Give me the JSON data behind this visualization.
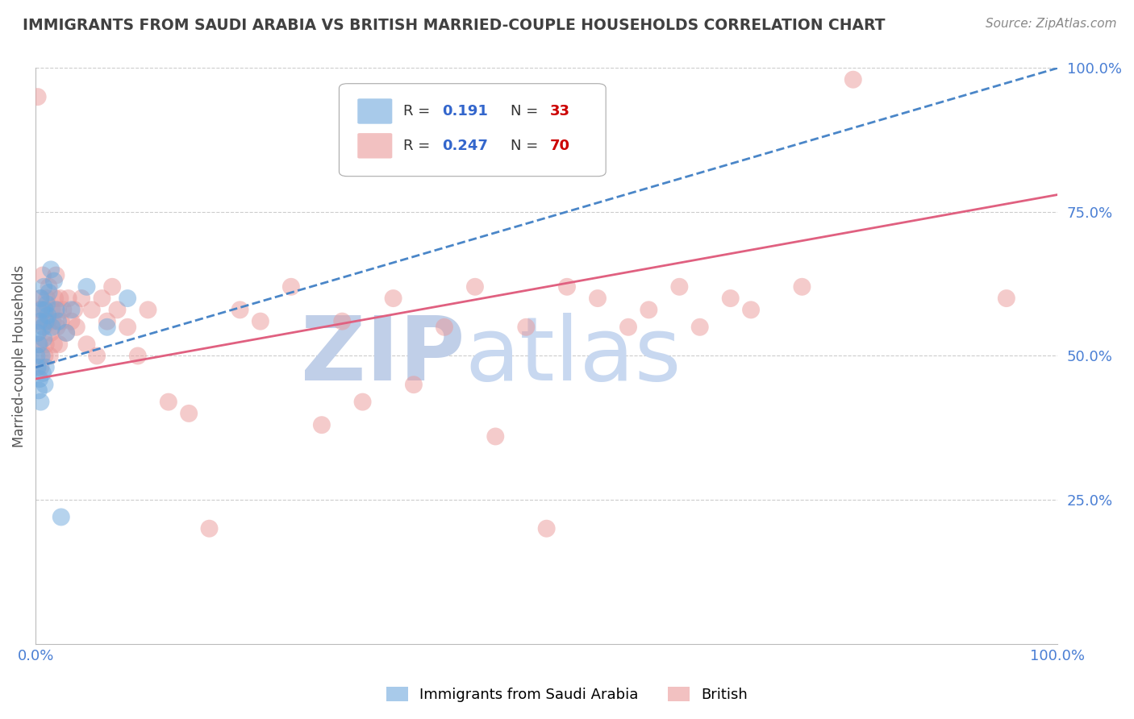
{
  "title": "IMMIGRANTS FROM SAUDI ARABIA VS BRITISH MARRIED-COUPLE HOUSEHOLDS CORRELATION CHART",
  "source": "Source: ZipAtlas.com",
  "ylabel": "Married-couple Households",
  "xlim": [
    0.0,
    1.0
  ],
  "ylim": [
    0.0,
    1.0
  ],
  "ytick_positions": [
    0.25,
    0.5,
    0.75,
    1.0
  ],
  "yticklabels": [
    "25.0%",
    "50.0%",
    "75.0%",
    "100.0%"
  ],
  "saudi_R": 0.191,
  "saudi_N": 33,
  "british_R": 0.247,
  "british_N": 70,
  "saudi_color": "#6fa8dc",
  "british_color": "#ea9999",
  "trend_saudi_color": "#4a86c8",
  "trend_british_color": "#e06080",
  "watermark_zip": "ZIP",
  "watermark_atlas": "atlas",
  "watermark_color_zip": "#c0cfe8",
  "watermark_color_atlas": "#c8d8f0",
  "background_color": "#ffffff",
  "grid_color": "#cccccc",
  "title_color": "#404040",
  "axis_label_color": "#555555",
  "tick_label_color": "#4a7fd4",
  "legend_R_color": "#3366cc",
  "legend_N_color": "#cc0000",
  "saudi_points_x": [
    0.001,
    0.002,
    0.002,
    0.003,
    0.003,
    0.004,
    0.004,
    0.005,
    0.005,
    0.006,
    0.006,
    0.007,
    0.007,
    0.008,
    0.008,
    0.009,
    0.009,
    0.01,
    0.01,
    0.011,
    0.012,
    0.013,
    0.015,
    0.016,
    0.018,
    0.02,
    0.022,
    0.025,
    0.03,
    0.035,
    0.05,
    0.07,
    0.09
  ],
  "saudi_points_y": [
    0.5,
    0.48,
    0.54,
    0.52,
    0.44,
    0.56,
    0.46,
    0.6,
    0.42,
    0.58,
    0.5,
    0.55,
    0.47,
    0.62,
    0.53,
    0.58,
    0.45,
    0.56,
    0.48,
    0.59,
    0.57,
    0.61,
    0.65,
    0.55,
    0.63,
    0.58,
    0.56,
    0.22,
    0.54,
    0.58,
    0.62,
    0.55,
    0.6
  ],
  "british_points_x": [
    0.002,
    0.003,
    0.004,
    0.005,
    0.005,
    0.006,
    0.007,
    0.008,
    0.009,
    0.01,
    0.01,
    0.011,
    0.012,
    0.013,
    0.014,
    0.015,
    0.016,
    0.017,
    0.018,
    0.019,
    0.02,
    0.021,
    0.022,
    0.023,
    0.024,
    0.025,
    0.027,
    0.03,
    0.032,
    0.035,
    0.038,
    0.04,
    0.045,
    0.05,
    0.055,
    0.06,
    0.065,
    0.07,
    0.075,
    0.08,
    0.09,
    0.1,
    0.11,
    0.13,
    0.15,
    0.17,
    0.2,
    0.22,
    0.25,
    0.28,
    0.3,
    0.32,
    0.35,
    0.37,
    0.4,
    0.43,
    0.45,
    0.48,
    0.5,
    0.52,
    0.55,
    0.58,
    0.6,
    0.63,
    0.65,
    0.68,
    0.7,
    0.75,
    0.8,
    0.95
  ],
  "british_points_y": [
    0.95,
    0.58,
    0.52,
    0.6,
    0.48,
    0.56,
    0.64,
    0.55,
    0.5,
    0.58,
    0.52,
    0.6,
    0.56,
    0.62,
    0.5,
    0.54,
    0.58,
    0.56,
    0.52,
    0.6,
    0.64,
    0.55,
    0.58,
    0.52,
    0.6,
    0.56,
    0.58,
    0.54,
    0.6,
    0.56,
    0.58,
    0.55,
    0.6,
    0.52,
    0.58,
    0.5,
    0.6,
    0.56,
    0.62,
    0.58,
    0.55,
    0.5,
    0.58,
    0.42,
    0.4,
    0.2,
    0.58,
    0.56,
    0.62,
    0.38,
    0.56,
    0.42,
    0.6,
    0.45,
    0.55,
    0.62,
    0.36,
    0.55,
    0.2,
    0.62,
    0.6,
    0.55,
    0.58,
    0.62,
    0.55,
    0.6,
    0.58,
    0.62,
    0.98,
    0.6
  ],
  "saudi_trend_x0": 0.0,
  "saudi_trend_x1": 1.0,
  "saudi_trend_y0": 0.48,
  "saudi_trend_y1": 1.0,
  "british_trend_x0": 0.0,
  "british_trend_x1": 1.0,
  "british_trend_y0": 0.46,
  "british_trend_y1": 0.78
}
